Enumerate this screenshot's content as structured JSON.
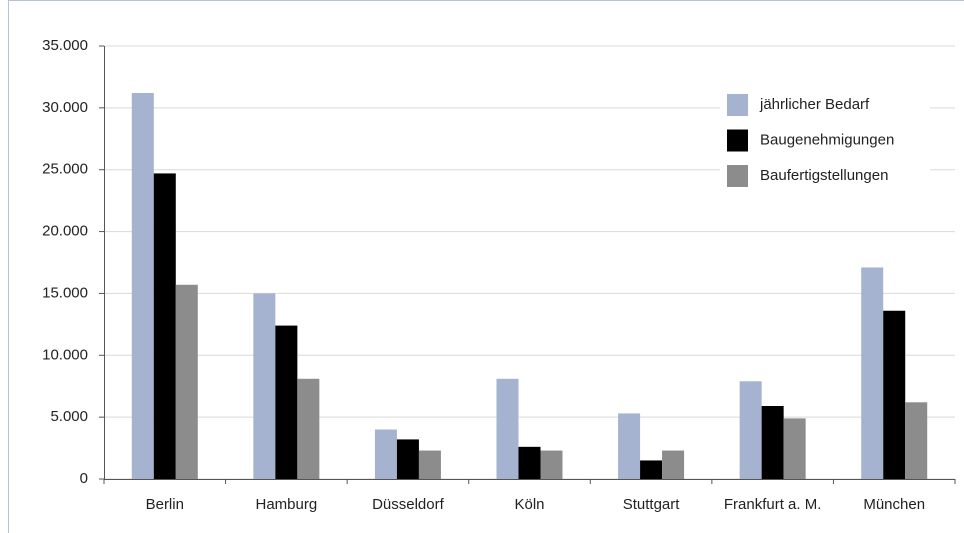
{
  "chart_data": {
    "type": "bar",
    "categories": [
      "Berlin",
      "Hamburg",
      "Düsseldorf",
      "Köln",
      "Stuttgart",
      "Frankfurt a. M.",
      "München"
    ],
    "series": [
      {
        "name": "jährlicher Bedarf",
        "color": "#a5b2d0",
        "values": [
          31200,
          15000,
          4000,
          8100,
          5300,
          7900,
          17100
        ]
      },
      {
        "name": "Baugenehmigungen",
        "color": "#000000",
        "values": [
          24700,
          12400,
          3200,
          2600,
          1500,
          5900,
          13600
        ]
      },
      {
        "name": "Baufertigstellungen",
        "color": "#8c8c8c",
        "values": [
          15700,
          8100,
          2300,
          2300,
          2300,
          4900,
          6200
        ]
      }
    ],
    "ylim": [
      0,
      35000
    ],
    "yticks": [
      0,
      {
        "value": 5000,
        "label": "5.000"
      },
      {
        "value": 10000,
        "label": "10.000"
      },
      {
        "value": 15000,
        "label": "15.000"
      },
      {
        "value": 20000,
        "label": "20.000"
      },
      {
        "value": 25000,
        "label": "25.000"
      },
      {
        "value": 30000,
        "label": "30.000"
      },
      {
        "value": 35000,
        "label": "35.000"
      }
    ],
    "grid": true,
    "legend": "top-right"
  }
}
